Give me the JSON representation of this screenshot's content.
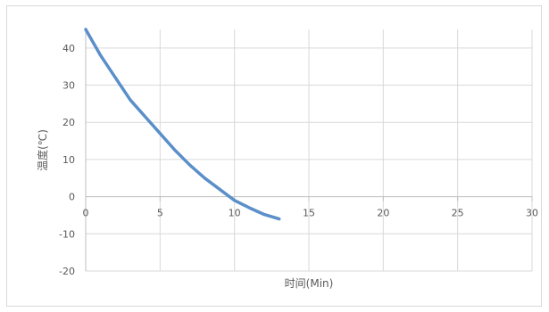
{
  "chart_data": {
    "type": "line",
    "title": "",
    "xlabel": "时间(Min)",
    "ylabel": "温度(℃)",
    "xlim": [
      0,
      30
    ],
    "ylim": [
      -20,
      45
    ],
    "xticks": [
      0,
      5,
      10,
      15,
      20,
      25,
      30
    ],
    "yticks": [
      -20,
      -10,
      0,
      10,
      20,
      30,
      40
    ],
    "grid": true,
    "legend": "none",
    "series": [
      {
        "color": "#5b8fc9",
        "x": [
          0,
          1,
          2,
          3,
          4,
          5,
          6,
          7,
          8,
          9,
          10,
          11,
          12,
          13
        ],
        "y": [
          45,
          38,
          32,
          26,
          21.5,
          17,
          12.5,
          8.5,
          5,
          2,
          -1,
          -3,
          -4.8,
          -6
        ]
      }
    ]
  }
}
